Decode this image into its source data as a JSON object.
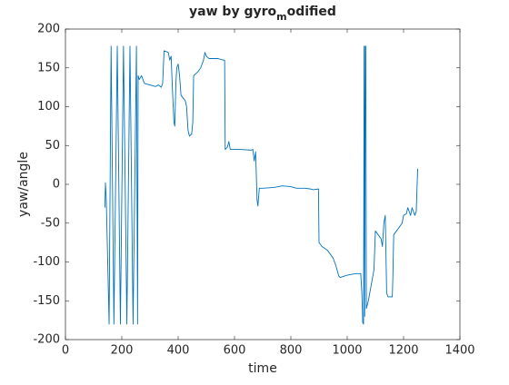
{
  "chart_data": {
    "type": "line",
    "title": [
      "yaw by gyro",
      "m",
      "odified"
    ],
    "xlabel": "time",
    "ylabel": "yaw/angle",
    "xlim": [
      0,
      1400
    ],
    "xticks": [
      0,
      200,
      400,
      600,
      800,
      1000,
      1200,
      1400
    ],
    "ylim": [
      -200,
      200
    ],
    "yticks": [
      -200,
      -150,
      -100,
      -50,
      0,
      50,
      100,
      150,
      200
    ],
    "grid": false,
    "series": [
      {
        "color": "#0072bd",
        "x": [
          140,
          142,
          145,
          155,
          162,
          172,
          184,
          195,
          206,
          218,
          229,
          240,
          252,
          256,
          258,
          262,
          270,
          280,
          300,
          320,
          330,
          340,
          345,
          350,
          365,
          370,
          375,
          380,
          385,
          388,
          392,
          395,
          400,
          405,
          410,
          420,
          425,
          430,
          435,
          440,
          448,
          452,
          455,
          470,
          480,
          490,
          495,
          500,
          510,
          540,
          560,
          565,
          567,
          575,
          580,
          585,
          620,
          660,
          665,
          670,
          675,
          680,
          683,
          688,
          700,
          740,
          770,
          800,
          820,
          850,
          870,
          880,
          898,
          900,
          910,
          930,
          950,
          960,
          970,
          975,
          1000,
          1030,
          1048,
          1052,
          1055,
          1058,
          1060,
          1062,
          1064,
          1066,
          1068,
          1075,
          1085,
          1095,
          1100,
          1110,
          1120,
          1125,
          1130,
          1135,
          1140,
          1145,
          1160,
          1162,
          1165,
          1175,
          1185,
          1195,
          1200,
          1210,
          1215,
          1225,
          1230,
          1240,
          1245,
          1250
        ],
        "values": [
          -30,
          2,
          -20,
          -180,
          178,
          -180,
          178,
          -180,
          178,
          -180,
          178,
          -180,
          178,
          -180,
          140,
          135,
          140,
          130,
          128,
          126,
          128,
          125,
          130,
          172,
          170,
          160,
          165,
          120,
          80,
          75,
          130,
          150,
          155,
          140,
          115,
          110,
          108,
          100,
          70,
          62,
          65,
          80,
          140,
          145,
          150,
          160,
          170,
          165,
          162,
          162,
          160,
          160,
          45,
          48,
          55,
          45,
          45,
          44,
          45,
          30,
          42,
          -20,
          -28,
          -5,
          -5,
          -4,
          -2,
          -3,
          -5,
          -5,
          -6,
          -7,
          -6,
          -75,
          -80,
          -85,
          -95,
          -105,
          -118,
          -120,
          -117,
          -115,
          -115,
          -140,
          -178,
          -180,
          178,
          -170,
          178,
          178,
          -160,
          -150,
          -130,
          -110,
          -60,
          -65,
          -70,
          -80,
          -50,
          -40,
          -140,
          -145,
          -145,
          -120,
          -65,
          -60,
          -55,
          -50,
          -40,
          -38,
          -30,
          -40,
          -30,
          -40,
          -35,
          20
        ]
      }
    ]
  }
}
